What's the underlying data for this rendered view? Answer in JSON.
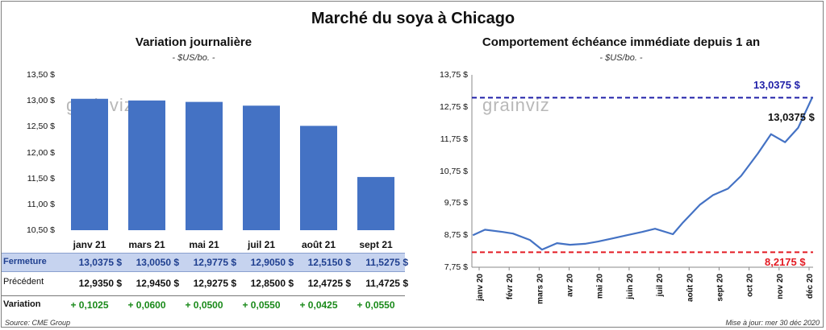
{
  "title": "Marché du soya à Chicago",
  "left": {
    "title": "Variation journalière",
    "unit": "- $US/bo. -",
    "watermark": "grainviz",
    "y_ticks": [
      "13,50 $",
      "13,00 $",
      "12,50 $",
      "12,00 $",
      "11,50 $",
      "11,00 $",
      "10,50 $"
    ],
    "bar_color": "#4472c4"
  },
  "table": {
    "row_labels": {
      "fermeture": "Fermeture",
      "precedent": "Précédent",
      "variation": "Variation"
    },
    "fermeture": [
      "13,0375 $",
      "13,0050 $",
      "12,9775 $",
      "12,9050 $",
      "12,5150 $",
      "11,5275 $"
    ],
    "precedent": [
      "12,9350 $",
      "12,9450 $",
      "12,9275 $",
      "12,8500 $",
      "12,4725 $",
      "11,4725 $"
    ],
    "variation": [
      "+ 0,1025",
      "+ 0,0600",
      "+ 0,0500",
      "+ 0,0550",
      "+ 0,0425",
      "+ 0,0550"
    ]
  },
  "right": {
    "title": "Comportement échéance immédiate depuis 1 an",
    "unit": "- $US/bo. -",
    "watermark": "grainviz",
    "y_ticks": [
      "13,75 $",
      "12,75 $",
      "11,75 $",
      "10,75 $",
      "9,75 $",
      "8,75 $",
      "7,75 $"
    ],
    "high_label": "13,0375 $",
    "low_label": "8,2175 $",
    "last_label": "13,0375 $",
    "x_ticks": [
      "janv 20",
      "févr 20",
      "mars 20",
      "avr 20",
      "mai 20",
      "juin 20",
      "juil 20",
      "août 20",
      "sept 20",
      "oct 20",
      "nov 20",
      "déc 20"
    ],
    "line_color": "#4472c4",
    "high_color": "#1f1fa8",
    "low_color": "#e31b23"
  },
  "footer": {
    "source": "Source: CME Group",
    "updated": "Mise à jour: mer 30 déc 2020"
  },
  "chart_data": [
    {
      "type": "bar",
      "title": "Variation journalière",
      "ylabel": "$US/bo.",
      "categories": [
        "janv 21",
        "mars 21",
        "mai 21",
        "juil 21",
        "août 21",
        "sept 21"
      ],
      "values": [
        13.0375,
        13.005,
        12.9775,
        12.905,
        12.515,
        11.5275
      ],
      "ylim": [
        10.5,
        13.5
      ]
    },
    {
      "type": "line",
      "title": "Comportement échéance immédiate depuis 1 an",
      "ylabel": "$US/bo.",
      "ylim": [
        7.75,
        13.75
      ],
      "x": [
        "2020-01-02",
        "2020-01-15",
        "2020-02-03",
        "2020-02-14",
        "2020-03-03",
        "2020-03-16",
        "2020-04-01",
        "2020-04-15",
        "2020-05-01",
        "2020-05-15",
        "2020-06-01",
        "2020-06-15",
        "2020-07-01",
        "2020-07-15",
        "2020-08-03",
        "2020-08-14",
        "2020-09-01",
        "2020-09-15",
        "2020-10-01",
        "2020-10-15",
        "2020-11-02",
        "2020-11-16",
        "2020-12-01",
        "2020-12-15",
        "2020-12-30"
      ],
      "series": [
        {
          "values": [
            8.75,
            8.92,
            8.85,
            8.8,
            8.6,
            8.3,
            8.5,
            8.45,
            8.48,
            8.55,
            8.66,
            8.75,
            8.85,
            8.95,
            8.78,
            9.15,
            9.7,
            10.0,
            10.2,
            10.6,
            11.3,
            11.9,
            11.65,
            12.1,
            13.0375
          ]
        }
      ],
      "high": 13.0375,
      "low": 8.2175
    }
  ]
}
